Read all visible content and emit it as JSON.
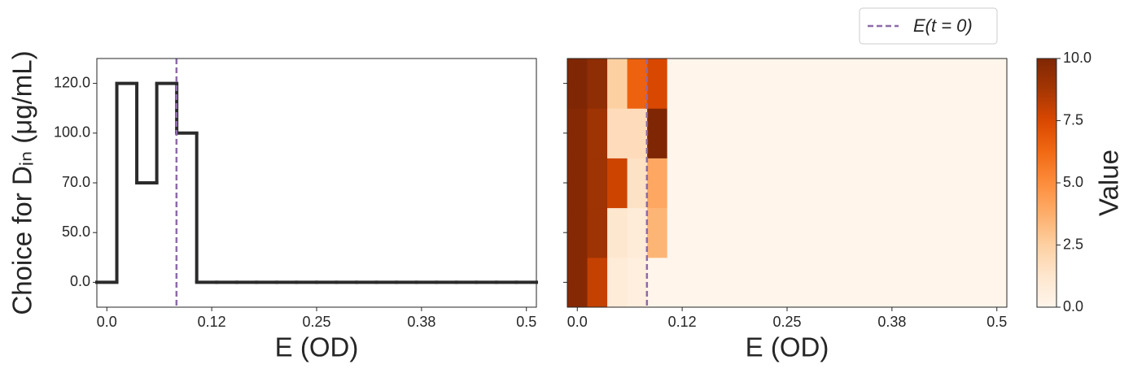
{
  "chart_data": [
    {
      "type": "step",
      "xlabel": "E (OD)",
      "ylabel": "Choice for Dᵢₙ (μg/mL)",
      "x": [
        0,
        0.0238,
        0.0476,
        0.0714,
        0.0952,
        0.119,
        0.1429,
        0.1667,
        0.1905,
        0.2143,
        0.2381,
        0.2619,
        0.2857,
        0.3095,
        0.3333,
        0.3571,
        0.381,
        0.4048,
        0.4286,
        0.4524,
        0.4762,
        0.5
      ],
      "values": [
        0,
        4,
        2,
        4,
        3,
        0,
        0,
        0,
        0,
        0,
        0,
        0,
        0,
        0,
        0,
        0,
        0,
        0,
        0,
        0,
        0,
        0
      ],
      "color": "#2b2b2b",
      "xlim": [
        -0.0119,
        0.5119
      ],
      "xticks": [
        {
          "value": 0,
          "label": "0.0"
        },
        {
          "value": 0.125,
          "label": "0.12"
        },
        {
          "value": 0.25,
          "label": "0.25"
        },
        {
          "value": 0.375,
          "label": "0.38"
        },
        {
          "value": 0.5,
          "label": "0.5"
        }
      ],
      "ylim": [
        -0.5,
        4.5
      ],
      "yticks": [
        {
          "value": 0,
          "label": "0.0"
        },
        {
          "value": 1,
          "label": "50.0"
        },
        {
          "value": 2,
          "label": "70.0"
        },
        {
          "value": 3,
          "label": "100.0"
        },
        {
          "value": 4,
          "label": "120.0"
        }
      ],
      "vline": {
        "x": 0.083,
        "label": "E(t = 0)",
        "color": "#8e6aa8"
      },
      "legend": "above"
    },
    {
      "type": "heatmap",
      "xlabel": "E (OD)",
      "x": [
        0,
        0.0238,
        0.0476,
        0.0714,
        0.0952,
        0.119,
        0.1429,
        0.1667,
        0.1905,
        0.2143,
        0.2381,
        0.2619,
        0.2857,
        0.3095,
        0.3333,
        0.3571,
        0.381,
        0.4048,
        0.4286,
        0.4524,
        0.4762,
        0.5
      ],
      "z": [
        [
          9.8,
          8,
          0.8,
          0.5,
          0,
          0,
          0,
          0,
          0,
          0,
          0,
          0,
          0,
          0,
          0,
          0,
          0,
          0,
          0,
          0,
          0,
          0
        ],
        [
          9.8,
          9,
          1.2,
          0.8,
          3.5,
          0,
          0,
          0,
          0,
          0,
          0,
          0,
          0,
          0,
          0,
          0,
          0,
          0,
          0,
          0,
          0,
          0
        ],
        [
          9.8,
          9,
          7.8,
          1.5,
          4,
          0,
          0,
          0,
          0,
          0,
          0,
          0,
          0,
          0,
          0,
          0,
          0,
          0,
          0,
          0,
          0,
          0
        ],
        [
          9.8,
          9,
          1.8,
          1.8,
          10,
          0,
          0,
          0,
          0,
          0,
          0,
          0,
          0,
          0,
          0,
          0,
          0,
          0,
          0,
          0,
          0,
          0
        ],
        [
          10,
          9.5,
          2.5,
          6.5,
          7.5,
          0,
          0,
          0,
          0,
          0,
          0,
          0,
          0,
          0,
          0,
          0,
          0,
          0,
          0,
          0,
          0,
          0
        ]
      ],
      "colormap": "Oranges",
      "xlim": [
        -0.0119,
        0.5119
      ],
      "xticks": [
        {
          "value": 0,
          "label": "0.0"
        },
        {
          "value": 0.125,
          "label": "0.12"
        },
        {
          "value": 0.25,
          "label": "0.25"
        },
        {
          "value": 0.375,
          "label": "0.38"
        },
        {
          "value": 0.5,
          "label": "0.5"
        }
      ],
      "ylim": [
        -0.5,
        4.5
      ],
      "vline": {
        "x": 0.083,
        "color": "#8e6aa8"
      },
      "colorbar": {
        "label": "Value",
        "lim": [
          0,
          10
        ],
        "ticks": [
          {
            "value": 0,
            "label": "0.0"
          },
          2.5,
          {
            "value": 5,
            "label": "5.0"
          },
          7.5,
          {
            "value": 10,
            "label": "10.0"
          }
        ]
      }
    }
  ]
}
